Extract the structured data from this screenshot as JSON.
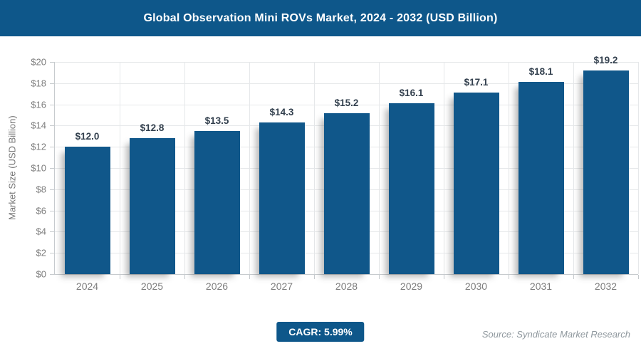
{
  "header": {
    "title": "Global Observation Mini ROVs Market, 2024 - 2032 (USD Billion)"
  },
  "chart_data": {
    "type": "bar",
    "title": "Global Observation Mini ROVs Market, 2024 - 2032 (USD Billion)",
    "categories": [
      "2024",
      "2025",
      "2026",
      "2027",
      "2028",
      "2029",
      "2030",
      "2031",
      "2032"
    ],
    "values": [
      12.0,
      12.8,
      13.5,
      14.3,
      15.2,
      16.1,
      17.1,
      18.1,
      19.2
    ],
    "value_labels": [
      "$12.0",
      "$12.8",
      "$13.5",
      "$14.3",
      "$15.2",
      "$16.1",
      "$17.1",
      "$18.1",
      "$19.2"
    ],
    "xlabel": "",
    "ylabel": "Market Size (USD Billion)",
    "ylim": [
      0,
      20
    ],
    "ytick_step": 2,
    "ytick_prefix": "$",
    "grid": true,
    "legend": "none",
    "bar_color": "#10578a",
    "value_label_color": "#33404e"
  },
  "footer": {
    "cagr_label": "CAGR: 5.99%",
    "source": "Source: Syndicate Market Research"
  },
  "colors": {
    "header_bg": "#0e578a",
    "badge_bg": "#0e578a",
    "axis": "#c7cbce",
    "gridline": "#e6e8ea",
    "tick_text": "#7d7d7d"
  }
}
